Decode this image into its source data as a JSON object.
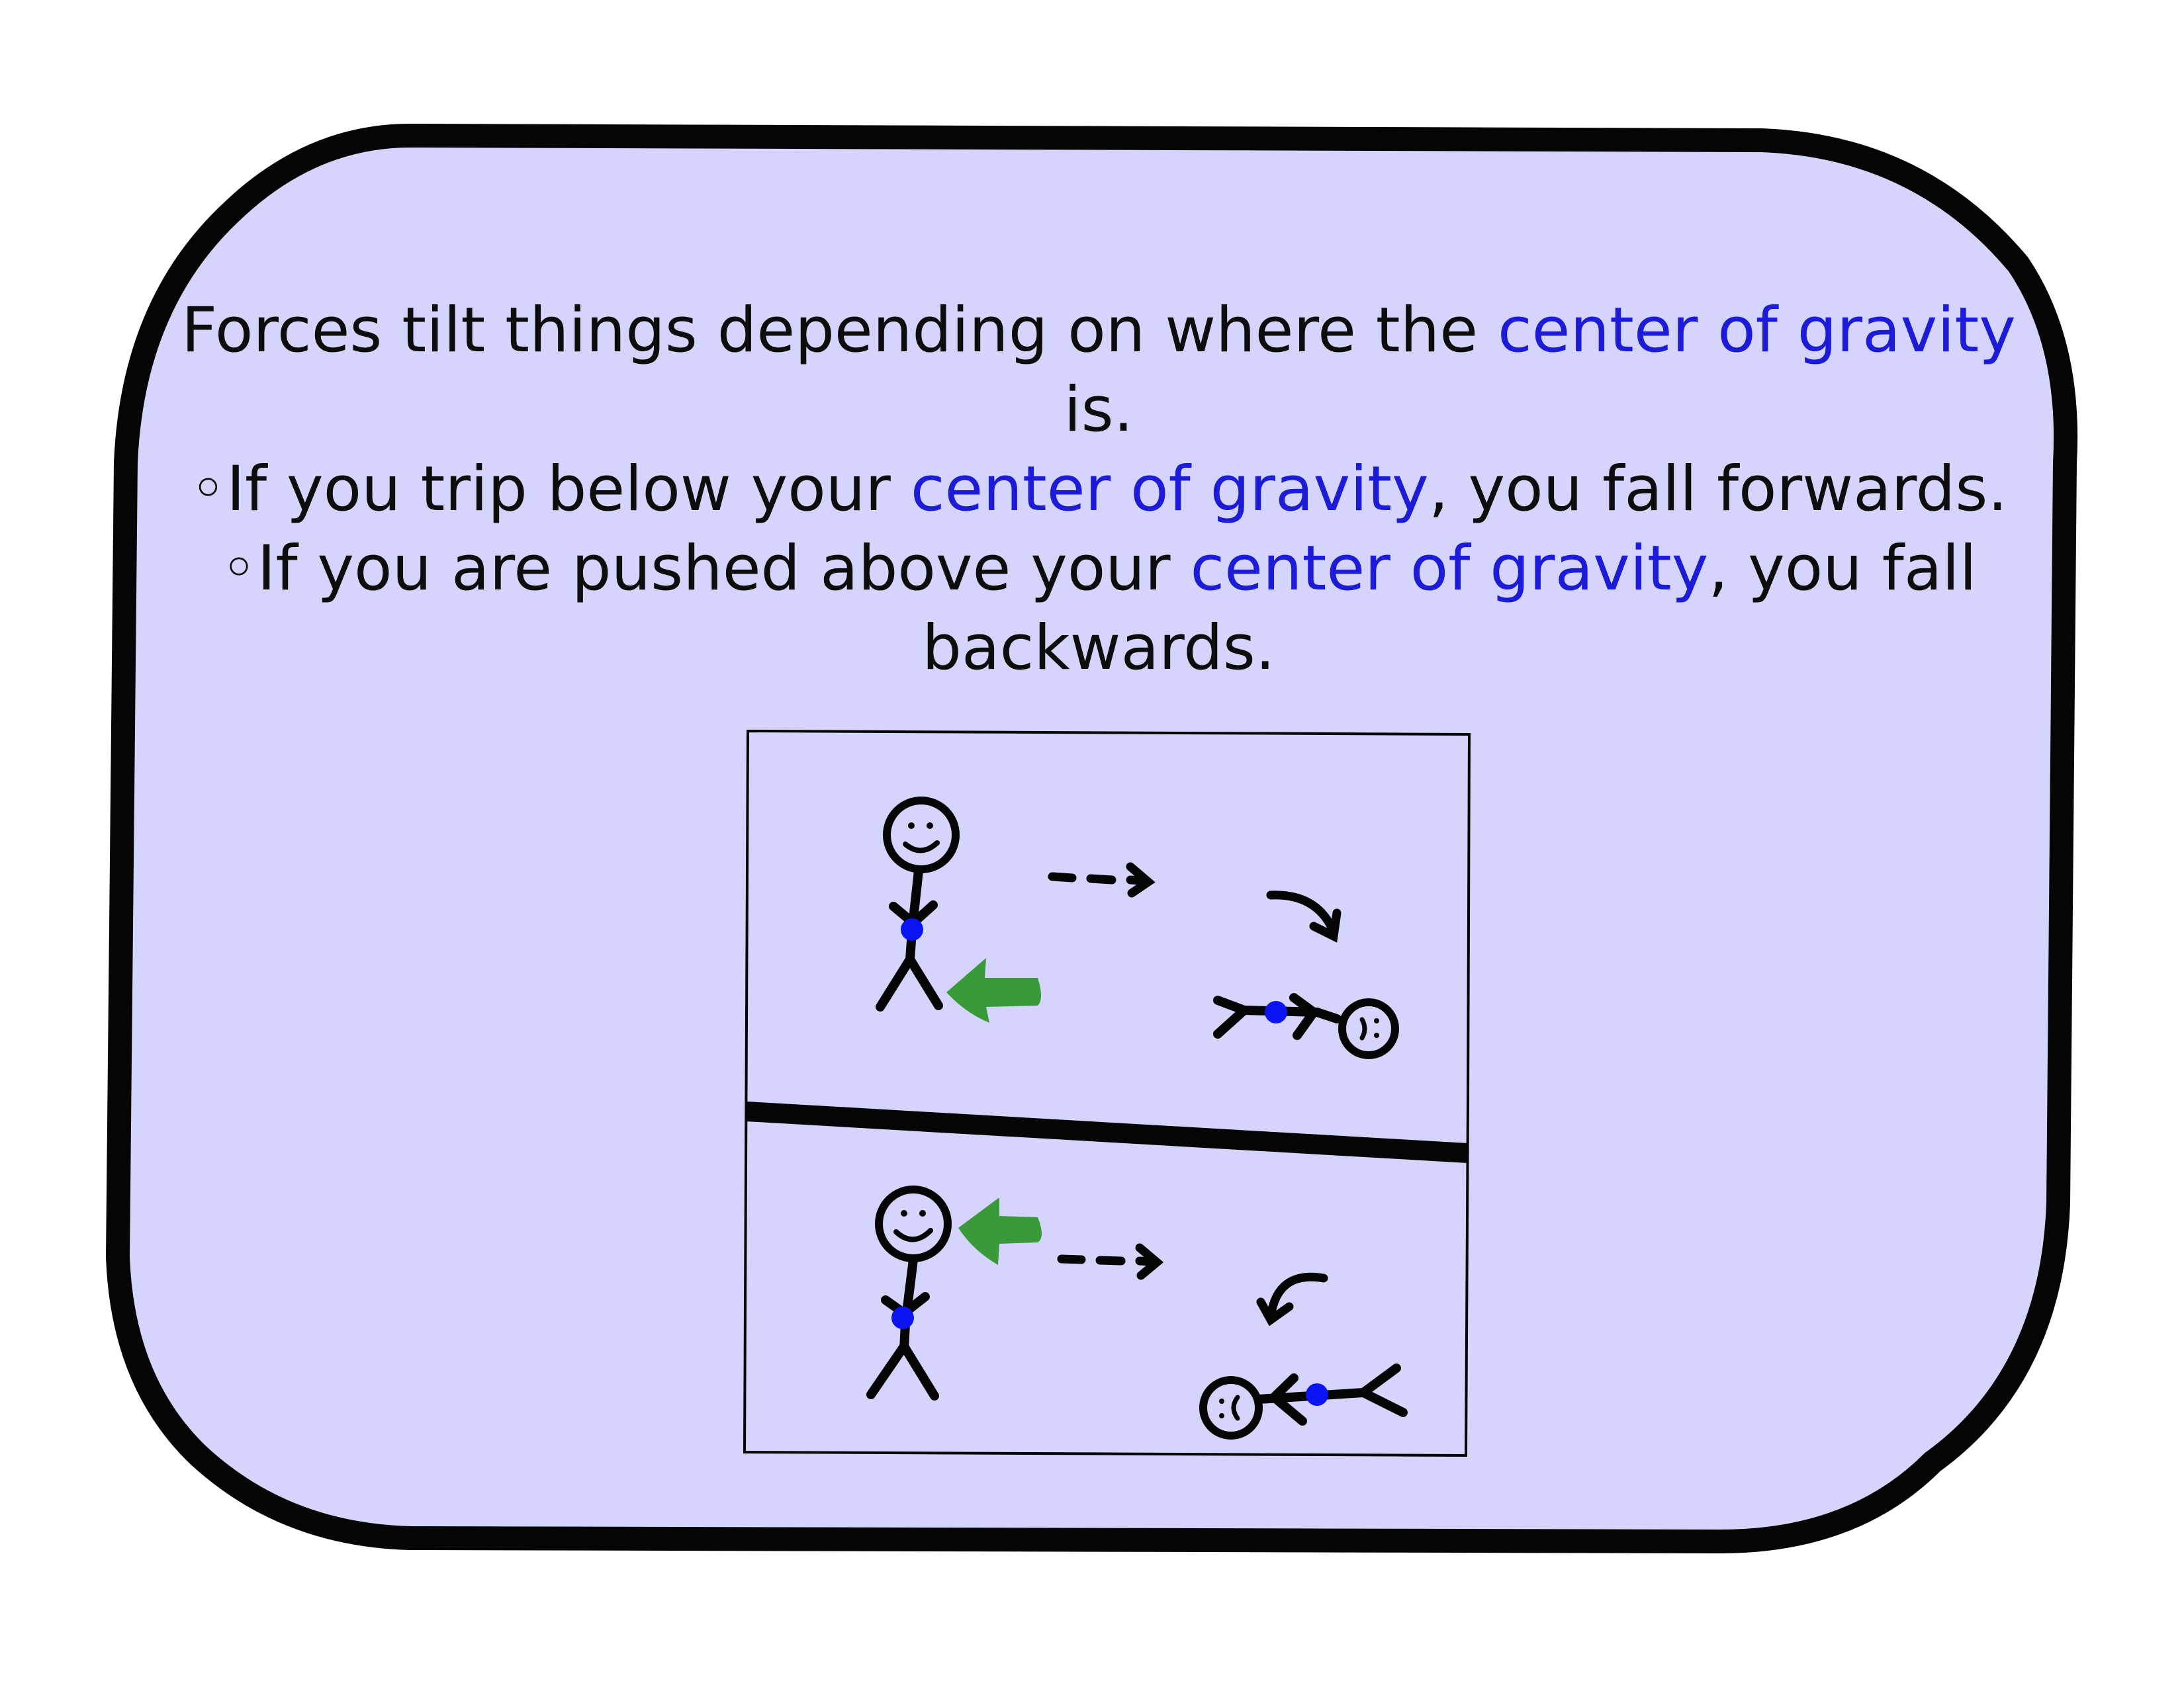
{
  "colors": {
    "card_fill": "#d4d4fc",
    "card_stroke": "#050505",
    "highlight_text": "#1b1bd8",
    "center_of_gravity_dot": "#0a14f0",
    "force_arrow": "#3a9a3a"
  },
  "text": {
    "line1": {
      "before": "Forces tilt things depending on where the ",
      "highlight": "center of gravity",
      "after": " is."
    },
    "bullet1": {
      "bullet": "◦",
      "before": "If you trip below your ",
      "highlight": "center of gravity",
      "after": ", you fall forwards."
    },
    "bullet2": {
      "bullet": "◦",
      "before": "If you are pushed above your ",
      "highlight": "center of gravity",
      "after": ", you fall backwards."
    }
  },
  "illustration": {
    "panels": [
      {
        "scenario": "tripped-below-center-of-gravity",
        "result": "falls-forwards",
        "push_at": "legs"
      },
      {
        "scenario": "pushed-above-center-of-gravity",
        "result": "falls-backwards",
        "push_at": "head"
      }
    ]
  }
}
